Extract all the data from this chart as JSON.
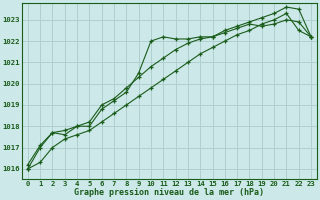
{
  "xlabel": "Graphe pression niveau de la mer (hPa)",
  "background_color": "#cce8e8",
  "grid_color": "#b0d0d0",
  "line_color": "#1a5c1a",
  "marker_color": "#1a5c1a",
  "ylim_min": 1015.5,
  "ylim_max": 1023.8,
  "xlim_min": -0.5,
  "xlim_max": 23.5,
  "yticks": [
    1016,
    1017,
    1018,
    1019,
    1020,
    1021,
    1022,
    1023
  ],
  "xticks": [
    0,
    1,
    2,
    3,
    4,
    5,
    6,
    7,
    8,
    9,
    10,
    11,
    12,
    13,
    14,
    15,
    16,
    17,
    18,
    19,
    20,
    21,
    22,
    23
  ],
  "series": [
    [
      1016.0,
      1017.0,
      1017.7,
      1017.6,
      1018.0,
      1018.0,
      1018.8,
      1019.2,
      1019.6,
      1020.5,
      1022.0,
      1022.2,
      1022.1,
      1022.1,
      1022.2,
      1022.2,
      1022.4,
      1022.6,
      1022.8,
      1022.7,
      1022.8,
      1023.0,
      1022.9,
      1022.2
    ],
    [
      1016.2,
      1017.1,
      1017.7,
      1017.8,
      1018.0,
      1018.2,
      1019.0,
      1019.3,
      1019.8,
      1020.3,
      1020.8,
      1021.2,
      1021.6,
      1021.9,
      1022.1,
      1022.2,
      1022.5,
      1022.7,
      1022.9,
      1023.1,
      1023.3,
      1023.6,
      1023.5,
      1022.2
    ],
    [
      1016.0,
      1016.3,
      1017.0,
      1017.4,
      1017.6,
      1017.8,
      1018.2,
      1018.6,
      1019.0,
      1019.4,
      1019.8,
      1020.2,
      1020.6,
      1021.0,
      1021.4,
      1021.7,
      1022.0,
      1022.3,
      1022.5,
      1022.8,
      1023.0,
      1023.3,
      1022.5,
      1022.2
    ]
  ],
  "tick_fontsize": 5.2,
  "label_fontsize": 6.0,
  "tick_color": "#1a5c1a",
  "label_color": "#1a5c1a"
}
